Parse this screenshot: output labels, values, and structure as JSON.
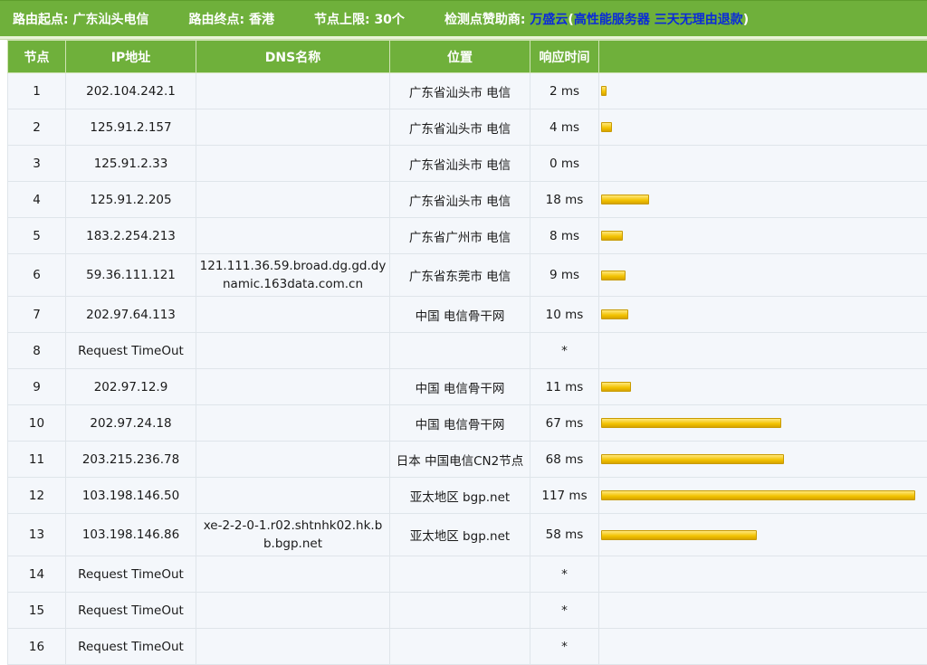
{
  "header": {
    "start_label": "路由起点: 广东汕头电信",
    "end_label": "路由终点: 香港",
    "limit_label": "节点上限: 30个",
    "sponsor_prefix": "检测点赞助商: ",
    "sponsor_name": "万盛云",
    "paren_open": "(",
    "sponsor_slogan": "高性能服务器 三天无理由退款",
    "paren_close": ")"
  },
  "columns": {
    "node": "节点",
    "ip": "IP地址",
    "dns": "DNS名称",
    "location": "位置",
    "time": "响应时间",
    "bar": ""
  },
  "rows": [
    {
      "node": "1",
      "ip": "202.104.242.1",
      "dns": "",
      "location": "广东省汕头市 电信",
      "time": "2 ms",
      "ms": 2
    },
    {
      "node": "2",
      "ip": "125.91.2.157",
      "dns": "",
      "location": "广东省汕头市 电信",
      "time": "4 ms",
      "ms": 4
    },
    {
      "node": "3",
      "ip": "125.91.2.33",
      "dns": "",
      "location": "广东省汕头市 电信",
      "time": "0 ms",
      "ms": 0
    },
    {
      "node": "4",
      "ip": "125.91.2.205",
      "dns": "",
      "location": "广东省汕头市 电信",
      "time": "18 ms",
      "ms": 18
    },
    {
      "node": "5",
      "ip": "183.2.254.213",
      "dns": "",
      "location": "广东省广州市 电信",
      "time": "8 ms",
      "ms": 8
    },
    {
      "node": "6",
      "ip": "59.36.111.121",
      "dns": "121.111.36.59.broad.dg.gd.dynamic.163data.com.cn",
      "location": "广东省东莞市 电信",
      "time": "9 ms",
      "ms": 9
    },
    {
      "node": "7",
      "ip": "202.97.64.113",
      "dns": "",
      "location": "中国 电信骨干网",
      "time": "10 ms",
      "ms": 10
    },
    {
      "node": "8",
      "ip": "Request TimeOut",
      "dns": "",
      "location": "",
      "time": "*",
      "ms": null
    },
    {
      "node": "9",
      "ip": "202.97.12.9",
      "dns": "",
      "location": "中国 电信骨干网",
      "time": "11 ms",
      "ms": 11
    },
    {
      "node": "10",
      "ip": "202.97.24.18",
      "dns": "",
      "location": "中国 电信骨干网",
      "time": "67 ms",
      "ms": 67
    },
    {
      "node": "11",
      "ip": "203.215.236.78",
      "dns": "",
      "location": "日本 中国电信CN2节点",
      "time": "68 ms",
      "ms": 68
    },
    {
      "node": "12",
      "ip": "103.198.146.50",
      "dns": "",
      "location": "亚太地区 bgp.net",
      "time": "117 ms",
      "ms": 117
    },
    {
      "node": "13",
      "ip": "103.198.146.86",
      "dns": "xe-2-2-0-1.r02.shtnhk02.hk.bb.bgp.net",
      "location": "亚太地区 bgp.net",
      "time": "58 ms",
      "ms": 58
    },
    {
      "node": "14",
      "ip": "Request TimeOut",
      "dns": "",
      "location": "",
      "time": "*",
      "ms": null
    },
    {
      "node": "15",
      "ip": "Request TimeOut",
      "dns": "",
      "location": "",
      "time": "*",
      "ms": null
    },
    {
      "node": "16",
      "ip": "Request TimeOut",
      "dns": "",
      "location": "",
      "time": "*",
      "ms": null
    }
  ],
  "colors": {
    "header_green": "#6fb03b",
    "sponsor_blue": "#0a2bd8",
    "bar_yellow": "#f2c200",
    "cell_bg": "#f4f7fb"
  }
}
